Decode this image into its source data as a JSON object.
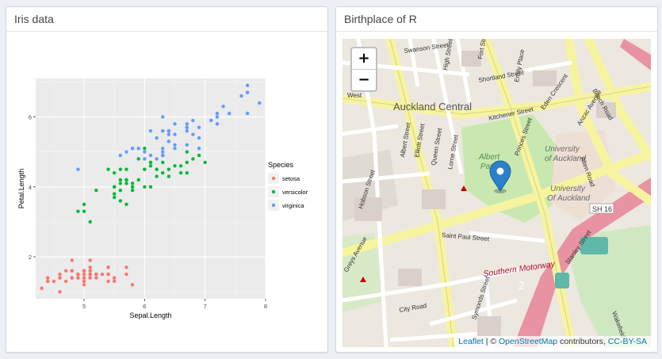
{
  "iris_box": {
    "title": "Iris data"
  },
  "map_box": {
    "title": "Birthplace of R"
  },
  "chart_data": {
    "type": "scatter",
    "title": "",
    "xlabel": "Sepal.Length",
    "ylabel": "Petal.Length",
    "xlim": [
      4.2,
      8.0
    ],
    "ylim": [
      0.8,
      7.1
    ],
    "xticks": [
      5,
      6,
      7,
      8
    ],
    "yticks": [
      2,
      4,
      6
    ],
    "legend": {
      "title": "Species",
      "placement": "right"
    },
    "series": [
      {
        "name": "setosa",
        "color": "#F8766D",
        "points": [
          [
            5.1,
            1.4
          ],
          [
            4.9,
            1.4
          ],
          [
            4.7,
            1.3
          ],
          [
            4.6,
            1.5
          ],
          [
            5.0,
            1.4
          ],
          [
            5.4,
            1.7
          ],
          [
            4.6,
            1.4
          ],
          [
            5.0,
            1.5
          ],
          [
            4.4,
            1.4
          ],
          [
            4.9,
            1.5
          ],
          [
            5.4,
            1.5
          ],
          [
            4.8,
            1.6
          ],
          [
            4.8,
            1.4
          ],
          [
            4.3,
            1.1
          ],
          [
            5.8,
            1.2
          ],
          [
            5.7,
            1.5
          ],
          [
            5.4,
            1.3
          ],
          [
            5.1,
            1.4
          ],
          [
            5.7,
            1.7
          ],
          [
            5.1,
            1.5
          ],
          [
            5.4,
            1.7
          ],
          [
            5.1,
            1.5
          ],
          [
            4.6,
            1.0
          ],
          [
            5.1,
            1.7
          ],
          [
            4.8,
            1.9
          ],
          [
            5.0,
            1.6
          ],
          [
            5.0,
            1.6
          ],
          [
            5.2,
            1.5
          ],
          [
            5.2,
            1.4
          ],
          [
            4.7,
            1.6
          ],
          [
            4.8,
            1.6
          ],
          [
            5.4,
            1.5
          ],
          [
            5.2,
            1.5
          ],
          [
            5.5,
            1.4
          ],
          [
            4.9,
            1.5
          ],
          [
            5.0,
            1.2
          ],
          [
            5.5,
            1.3
          ],
          [
            4.9,
            1.4
          ],
          [
            4.4,
            1.3
          ],
          [
            5.1,
            1.5
          ],
          [
            5.0,
            1.3
          ],
          [
            4.5,
            1.3
          ],
          [
            4.4,
            1.3
          ],
          [
            5.0,
            1.6
          ],
          [
            5.1,
            1.9
          ],
          [
            4.8,
            1.4
          ],
          [
            5.1,
            1.6
          ],
          [
            4.6,
            1.4
          ],
          [
            5.3,
            1.5
          ],
          [
            5.0,
            1.4
          ]
        ]
      },
      {
        "name": "versicolor",
        "color": "#00BA38",
        "points": [
          [
            7.0,
            4.7
          ],
          [
            6.4,
            4.5
          ],
          [
            6.9,
            4.9
          ],
          [
            5.5,
            4.0
          ],
          [
            6.5,
            4.6
          ],
          [
            5.7,
            4.5
          ],
          [
            6.3,
            4.7
          ],
          [
            4.9,
            3.3
          ],
          [
            6.6,
            4.6
          ],
          [
            5.2,
            3.9
          ],
          [
            5.0,
            3.5
          ],
          [
            5.9,
            4.2
          ],
          [
            6.0,
            4.0
          ],
          [
            6.1,
            4.7
          ],
          [
            5.6,
            3.6
          ],
          [
            6.7,
            4.4
          ],
          [
            5.6,
            4.5
          ],
          [
            5.8,
            4.1
          ],
          [
            6.2,
            4.5
          ],
          [
            5.6,
            3.9
          ],
          [
            5.9,
            4.8
          ],
          [
            6.1,
            4.0
          ],
          [
            6.3,
            4.9
          ],
          [
            6.1,
            4.7
          ],
          [
            6.4,
            4.3
          ],
          [
            6.6,
            4.4
          ],
          [
            6.8,
            4.8
          ],
          [
            6.7,
            5.0
          ],
          [
            6.0,
            4.5
          ],
          [
            5.7,
            3.5
          ],
          [
            5.5,
            3.8
          ],
          [
            5.5,
            3.7
          ],
          [
            5.8,
            3.9
          ],
          [
            6.0,
            5.1
          ],
          [
            5.4,
            4.5
          ],
          [
            6.0,
            4.5
          ],
          [
            6.7,
            4.7
          ],
          [
            6.3,
            4.4
          ],
          [
            5.6,
            4.1
          ],
          [
            5.5,
            4.0
          ],
          [
            5.5,
            4.4
          ],
          [
            6.1,
            4.6
          ],
          [
            5.8,
            4.0
          ],
          [
            5.0,
            3.3
          ],
          [
            5.6,
            4.2
          ],
          [
            5.7,
            4.2
          ],
          [
            5.7,
            4.2
          ],
          [
            6.2,
            4.3
          ],
          [
            5.1,
            3.0
          ],
          [
            5.7,
            4.1
          ]
        ]
      },
      {
        "name": "virginica",
        "color": "#619CFF",
        "points": [
          [
            6.3,
            6.0
          ],
          [
            5.8,
            5.1
          ],
          [
            7.1,
            5.9
          ],
          [
            6.3,
            5.6
          ],
          [
            6.5,
            5.8
          ],
          [
            7.6,
            6.6
          ],
          [
            4.9,
            4.5
          ],
          [
            7.3,
            6.3
          ],
          [
            6.7,
            5.8
          ],
          [
            7.2,
            6.1
          ],
          [
            6.5,
            5.1
          ],
          [
            6.4,
            5.3
          ],
          [
            6.8,
            5.5
          ],
          [
            5.7,
            5.0
          ],
          [
            5.8,
            5.1
          ],
          [
            6.4,
            5.3
          ],
          [
            6.5,
            5.5
          ],
          [
            7.7,
            6.7
          ],
          [
            7.7,
            6.9
          ],
          [
            6.0,
            5.0
          ],
          [
            6.9,
            5.7
          ],
          [
            5.6,
            4.9
          ],
          [
            7.7,
            6.7
          ],
          [
            6.3,
            4.9
          ],
          [
            6.7,
            5.7
          ],
          [
            7.2,
            6.0
          ],
          [
            6.2,
            4.8
          ],
          [
            6.1,
            4.9
          ],
          [
            6.4,
            5.6
          ],
          [
            7.2,
            5.8
          ],
          [
            7.4,
            6.1
          ],
          [
            7.9,
            6.4
          ],
          [
            6.4,
            5.6
          ],
          [
            6.3,
            5.1
          ],
          [
            6.1,
            5.6
          ],
          [
            7.7,
            6.1
          ],
          [
            6.3,
            5.6
          ],
          [
            6.4,
            5.5
          ],
          [
            6.0,
            4.8
          ],
          [
            6.9,
            5.4
          ],
          [
            6.7,
            5.6
          ],
          [
            6.9,
            5.1
          ],
          [
            5.8,
            5.1
          ],
          [
            6.8,
            5.9
          ],
          [
            6.7,
            5.7
          ],
          [
            6.7,
            5.2
          ],
          [
            6.3,
            5.0
          ],
          [
            6.5,
            5.2
          ],
          [
            6.2,
            5.4
          ],
          [
            5.9,
            5.1
          ]
        ]
      }
    ]
  },
  "map": {
    "zoom_in": "+",
    "zoom_out": "−",
    "attribution": {
      "leaflet": "Leaflet",
      "sep": " | © ",
      "osm": "OpenStreetMap",
      "contributors": " contributors, ",
      "license": "CC-BY-SA"
    },
    "labels": {
      "district": "Auckland Central",
      "university1": "University",
      "university2": "of Auckland",
      "university3": "University",
      "university4": "Of Auckland",
      "albert_park1": "Albert",
      "albert_park2": "Park",
      "southern_motorway": "Southern Motorway",
      "motorway_num": "2",
      "sh16": "SH 16",
      "swanson": "Swanson Street",
      "shortland": "Shortland Street",
      "kitchener": "Kitchener Street",
      "albert_st": "Albert Street",
      "elliott_st": "Elliott Street",
      "queen_st": "Queen Street",
      "lorne_st": "Lorne Street",
      "hobson_st": "Hobson Street",
      "princes_st": "Princes Street",
      "symonds_st": "Symonds Street",
      "saint_paul": "Saint Paul Street",
      "anzac_ave": "Anzac Avenue",
      "beach_rd": "Beach Road",
      "alten_rd": "Alten Road",
      "stanley_st": "Stanley Street",
      "city_rd": "City Road",
      "grey_ave": "Greys Avenue",
      "west": "West",
      "fort_st": "Fort Street",
      "high_st": "High Street",
      "emily": "Emily Place",
      "eden": "Eden Crescent",
      "wakefield": "Wakefield"
    }
  }
}
